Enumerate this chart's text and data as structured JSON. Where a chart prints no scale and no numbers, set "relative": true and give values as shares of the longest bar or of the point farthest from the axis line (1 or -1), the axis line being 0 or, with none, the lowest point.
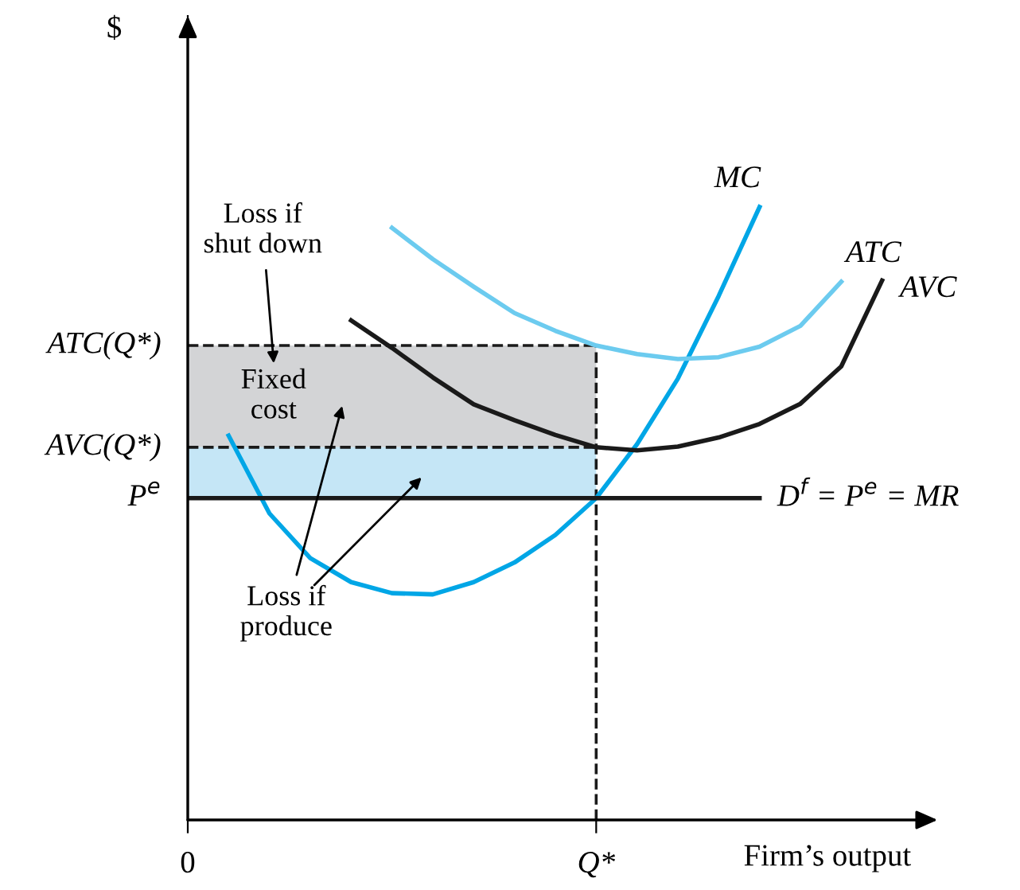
{
  "chart_data": {
    "type": "line",
    "relative": true,
    "xlabel": "Firm’s output",
    "categories": [
      "0",
      null,
      null,
      null,
      null,
      null,
      null,
      null,
      null,
      null,
      "Q*",
      null,
      null,
      null,
      null,
      null,
      null,
      null,
      null
    ],
    "series": [
      {
        "name": "MC",
        "color": "#00a6e6",
        "values": [
          null,
          0.627,
          0.5,
          0.427,
          0.388,
          0.37,
          0.368,
          0.388,
          0.42,
          0.465,
          0.525,
          0.613,
          0.72,
          0.855,
          1.0,
          null,
          null,
          null,
          null
        ]
      },
      {
        "name": "ATC",
        "color": "#6ccbef",
        "values": [
          null,
          null,
          null,
          null,
          null,
          0.966,
          0.915,
          0.87,
          0.827,
          0.798,
          0.774,
          0.76,
          0.752,
          0.755,
          0.772,
          0.806,
          0.878,
          null,
          null
        ]
      },
      {
        "name": "AVC",
        "color": "#1a1a1a",
        "values": [
          null,
          null,
          null,
          null,
          0.815,
          0.77,
          0.722,
          0.678,
          0.652,
          0.628,
          0.608,
          0.603,
          0.609,
          0.624,
          0.646,
          0.679,
          0.74,
          0.88,
          null
        ]
      },
      {
        "name": "D$^{f}$ = P$^{e}$ = MR",
        "color": "#1a1a1a",
        "values": [
          0.525,
          0.525,
          0.525,
          0.525,
          0.525,
          0.525,
          0.525,
          0.525,
          0.525,
          0.525,
          0.525,
          0.525,
          0.525,
          0.525,
          0.525,
          null,
          null,
          null,
          null
        ]
      }
    ],
    "ref_lines": [
      {
        "axis": "x",
        "value": "Q*",
        "color": "#1a1a1a",
        "line_style": "dashed"
      },
      {
        "axis": "y",
        "value": 0.774,
        "label": "ATC(Q*)",
        "color": "#1a1a1a",
        "line_style": "dashed"
      },
      {
        "axis": "y",
        "value": 0.608,
        "label": "AVC(Q*)",
        "color": "#1a1a1a",
        "line_style": "dashed"
      }
    ],
    "bands": [
      {
        "axis": "y",
        "from": 0.608,
        "to": 0.774,
        "label": "Fixed\ncost",
        "color": "#d3d4d6"
      },
      {
        "axis": "y",
        "from": 0.525,
        "to": 0.608,
        "color": "#c5e6f6"
      }
    ],
    "annotations": [
      "Loss if\nshut down",
      "Loss if\nproduce",
      "P$^{e}$",
      "$"
    ],
    "grid": false,
    "legend": false,
    "line_style": "solid",
    "marker": "none"
  }
}
